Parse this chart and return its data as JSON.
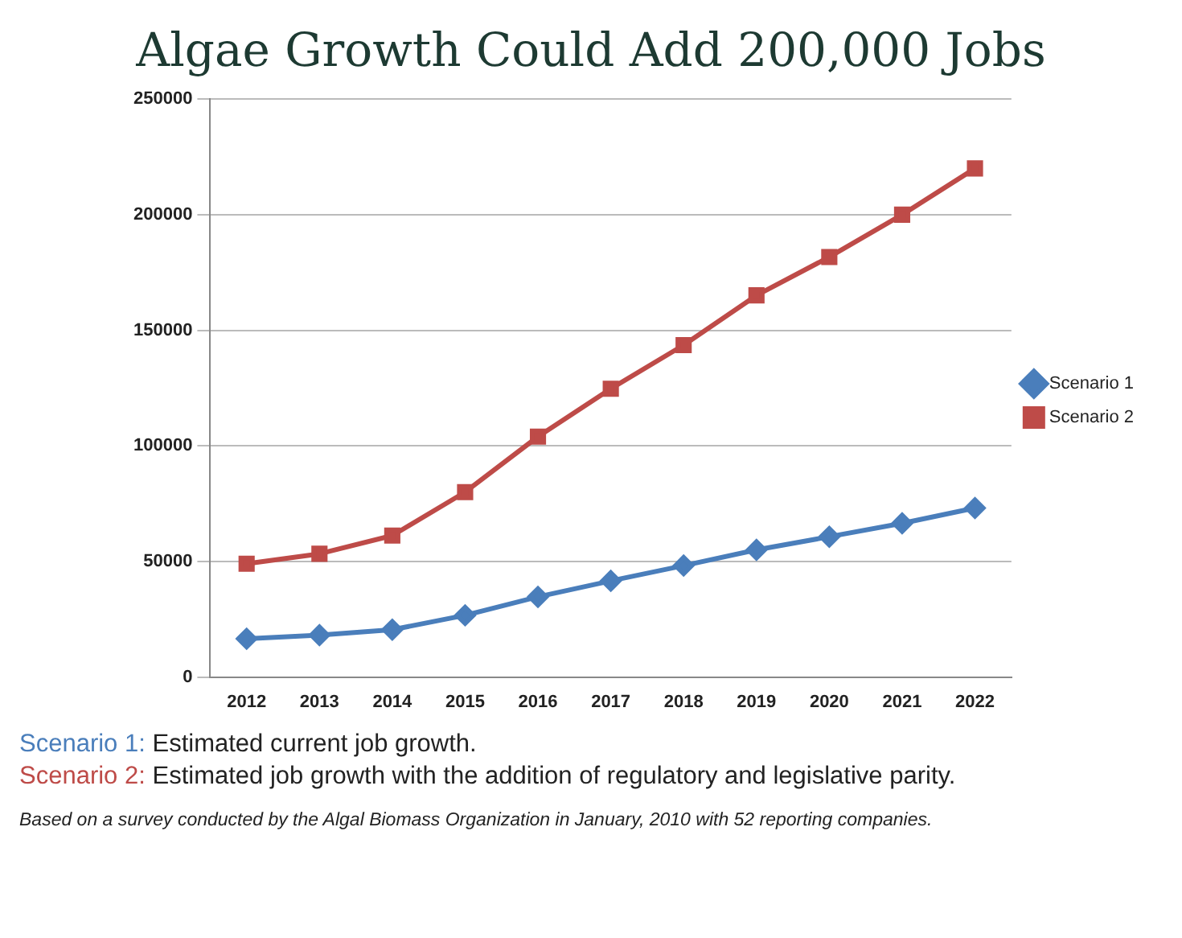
{
  "chart_data": {
    "type": "line",
    "title": "Algae Growth Could Add 200,000 Jobs",
    "categories": [
      "2012",
      "2013",
      "2014",
      "2015",
      "2016",
      "2017",
      "2018",
      "2019",
      "2020",
      "2021",
      "2022"
    ],
    "series": [
      {
        "name": "Scenario 1",
        "color": "#4a7ebb",
        "marker": "diamond",
        "values": [
          16600,
          18100,
          20500,
          26700,
          34700,
          41600,
          48200,
          55000,
          60700,
          66500,
          73100
        ]
      },
      {
        "name": "Scenario 2",
        "color": "#be4b48",
        "marker": "square",
        "values": [
          49000,
          53300,
          61200,
          80000,
          104000,
          124700,
          143600,
          165100,
          181700,
          200000,
          220000
        ]
      }
    ],
    "ylim": [
      0,
      250000
    ],
    "yticks": [
      0,
      50000,
      100000,
      150000,
      200000,
      250000
    ],
    "grid": "y",
    "legend": "right",
    "annotations": [
      "Scenario 1: Estimated current job growth.",
      "Scenario 2: Estimated job growth with the addition of regulatory and legislative parity.",
      "Based on a survey conducted by the Algal Biomass Organization in January, 2010 with 52 reporting companies."
    ]
  }
}
